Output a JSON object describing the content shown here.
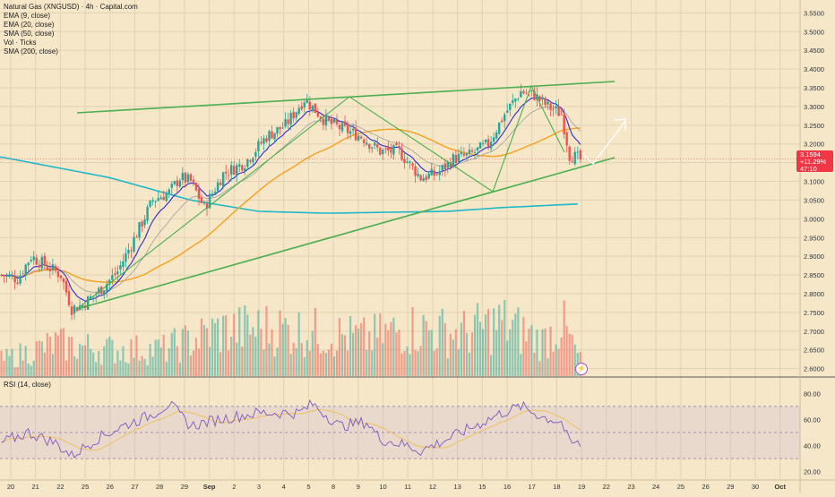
{
  "legend": {
    "title": "Natural Gas (XNGUSD) · 4h · Capital.com",
    "indicators": [
      "EMA (9, close)",
      "EMA (20, close)",
      "SMA (50, close)",
      "Vol · Ticks",
      "SMA (200, close)"
    ]
  },
  "rsi_legend": "RSI (14, close)",
  "price_badge": {
    "price": "3.1594",
    "change": "+11.29%",
    "timer": "47:10"
  },
  "lightning_icon": "⚡",
  "colors": {
    "background": "#f5e7c8",
    "grid": "#e2d2b2",
    "up": "#26a69a",
    "down": "#ef5350",
    "ema9": "#2c2ccf",
    "ema20": "#a0a0a0",
    "sma50": "#f5a020",
    "sma200": "#20b8c8",
    "drawing": "#4caf50",
    "rsi": "#7e57c2",
    "rsi_ma": "#f0c060",
    "projection": "#ffffff"
  },
  "chart_data": {
    "type": "candlestick",
    "price_axis": [
      "3.5500",
      "3.5000",
      "3.4500",
      "3.4000",
      "3.3500",
      "3.3000",
      "3.2500",
      "3.2000",
      "3.1500",
      "3.1000",
      "3.0500",
      "3.0000",
      "2.9500",
      "2.9000",
      "2.8500",
      "2.8000",
      "2.7500",
      "2.7000",
      "2.6500",
      "2.6000"
    ],
    "rsi_axis": [
      "80.00",
      "60.00",
      "40.00",
      "20.00"
    ],
    "x_ticks": [
      "20",
      "21",
      "22",
      "25",
      "26",
      "27",
      "28",
      "29",
      "Sep",
      "2",
      "3",
      "4",
      "5",
      "8",
      "9",
      "10",
      "11",
      "12",
      "13",
      "15",
      "16",
      "17",
      "18",
      "19",
      "22",
      "23",
      "24",
      "25",
      "26",
      "29",
      "30",
      "Oct"
    ],
    "ylim": [
      2.58,
      3.57
    ],
    "rsi_levels": [
      70,
      50,
      30
    ],
    "current_price": 3.1594,
    "price_anchors": [
      [
        0,
        2.85
      ],
      [
        6,
        2.84
      ],
      [
        11,
        2.9
      ],
      [
        22,
        2.85
      ],
      [
        26,
        2.76
      ],
      [
        30,
        2.77
      ],
      [
        38,
        2.82
      ],
      [
        43,
        2.86
      ],
      [
        50,
        2.96
      ],
      [
        56,
        3.05
      ],
      [
        62,
        3.07
      ],
      [
        66,
        3.11
      ],
      [
        70,
        3.1
      ],
      [
        75,
        3.03
      ],
      [
        82,
        3.12
      ],
      [
        90,
        3.15
      ],
      [
        98,
        3.22
      ],
      [
        105,
        3.25
      ],
      [
        112,
        3.32
      ],
      [
        120,
        3.26
      ],
      [
        126,
        3.24
      ],
      [
        133,
        3.22
      ],
      [
        140,
        3.18
      ],
      [
        147,
        3.18
      ],
      [
        155,
        3.11
      ],
      [
        161,
        3.12
      ],
      [
        167,
        3.16
      ],
      [
        173,
        3.17
      ],
      [
        180,
        3.2
      ],
      [
        186,
        3.28
      ],
      [
        192,
        3.34
      ],
      [
        197,
        3.33
      ],
      [
        202,
        3.3
      ],
      [
        207,
        3.28
      ],
      [
        210,
        3.17
      ],
      [
        214,
        3.16
      ]
    ],
    "rsi_anchors": [
      [
        0,
        42
      ],
      [
        10,
        50
      ],
      [
        20,
        42
      ],
      [
        26,
        32
      ],
      [
        35,
        45
      ],
      [
        45,
        55
      ],
      [
        55,
        63
      ],
      [
        62,
        72
      ],
      [
        70,
        55
      ],
      [
        80,
        60
      ],
      [
        95,
        65
      ],
      [
        110,
        65
      ],
      [
        115,
        72
      ],
      [
        125,
        55
      ],
      [
        135,
        58
      ],
      [
        140,
        45
      ],
      [
        150,
        40
      ],
      [
        155,
        36
      ],
      [
        165,
        45
      ],
      [
        175,
        55
      ],
      [
        185,
        65
      ],
      [
        192,
        70
      ],
      [
        200,
        62
      ],
      [
        207,
        58
      ],
      [
        210,
        42
      ],
      [
        214,
        41
      ]
    ],
    "volume_anchors": [
      [
        0,
        0.3
      ],
      [
        20,
        0.6
      ],
      [
        40,
        0.5
      ],
      [
        60,
        0.5
      ],
      [
        80,
        0.85
      ],
      [
        100,
        0.9
      ],
      [
        120,
        0.8
      ],
      [
        135,
        0.7
      ],
      [
        150,
        0.9
      ],
      [
        170,
        0.8
      ],
      [
        185,
        1.0
      ],
      [
        200,
        0.65
      ],
      [
        207,
        1.0
      ],
      [
        214,
        0.3
      ]
    ]
  }
}
